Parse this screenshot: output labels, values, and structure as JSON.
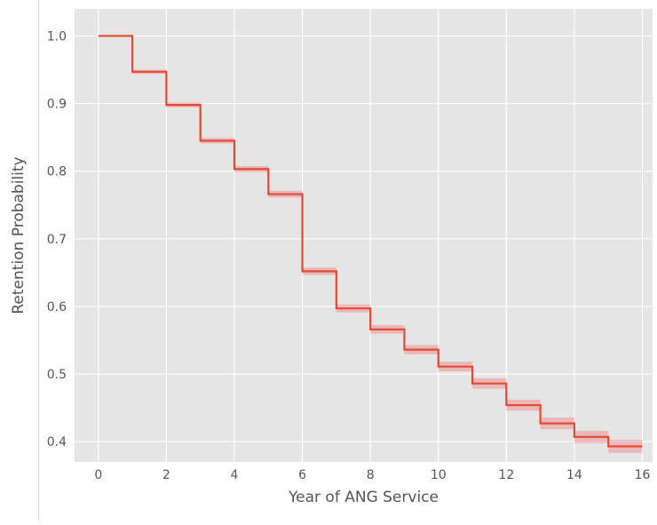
{
  "chart_data": {
    "type": "line",
    "title": "",
    "xlabel": "Year of ANG Service",
    "ylabel": "Retention Probability",
    "xlim": [
      -0.7,
      16.3
    ],
    "ylim": [
      0.37,
      1.04
    ],
    "grid": true,
    "style": "step-post",
    "x_ticks": [
      0,
      2,
      4,
      6,
      8,
      10,
      12,
      14,
      16
    ],
    "y_ticks": [
      0.4,
      0.5,
      0.6,
      0.7,
      0.8,
      0.9,
      1.0
    ],
    "y_tick_labels": [
      "0.4",
      "0.5",
      "0.6",
      "0.7",
      "0.8",
      "0.9",
      "1.0"
    ],
    "series": [
      {
        "x": [
          0,
          1,
          2,
          3,
          4,
          5,
          6,
          7,
          8,
          9,
          10,
          11,
          12,
          13,
          14,
          15,
          16
        ],
        "values": [
          1.0,
          0.947,
          0.898,
          0.845,
          0.803,
          0.766,
          0.652,
          0.597,
          0.566,
          0.536,
          0.511,
          0.486,
          0.454,
          0.427,
          0.407,
          0.393,
          0.393
        ],
        "color": "#e24a33"
      }
    ],
    "colors": {
      "plot_background": "#e5e5e5",
      "grid": "#ffffff",
      "tick_label": "#555555",
      "axis_label": "#555555",
      "line": "#e24a33",
      "band": "#f08080"
    }
  }
}
